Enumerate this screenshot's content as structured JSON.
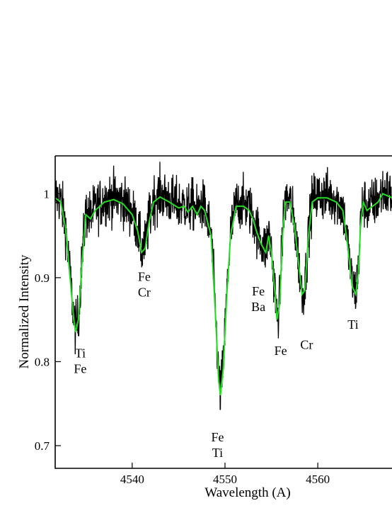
{
  "chart_data": {
    "type": "line",
    "xlabel": "Wavelength (A)",
    "ylabel": "Normalized Intensity",
    "xlim": [
      4531.7,
      4568.0
    ],
    "ylim": [
      0.673,
      1.045
    ],
    "xticks": [
      {
        "value": 4540,
        "label": "4540"
      },
      {
        "value": 4550,
        "label": "4550"
      },
      {
        "value": 4560,
        "label": "4560"
      }
    ],
    "yticks": [
      {
        "value": 0.7,
        "label": "0.7"
      },
      {
        "value": 0.8,
        "label": "0.8"
      },
      {
        "value": 0.9,
        "label": "0.9"
      },
      {
        "value": 1.0,
        "label": "1"
      }
    ],
    "series": [
      {
        "role": "observed",
        "color": "#000000",
        "depth_scale": 1.0,
        "noise": 0.028,
        "continuum": 0.995
      },
      {
        "role": "synthetic",
        "color": "#22dd22",
        "continuum": 0.995,
        "x": [
          4531.7,
          4532.3,
          4532.8,
          4533.3,
          4533.7,
          4533.9,
          4534.2,
          4534.6,
          4535.0,
          4535.5,
          4536.0,
          4537.0,
          4538.0,
          4539.0,
          4540.0,
          4540.6,
          4541.0,
          4541.4,
          4541.8,
          4542.3,
          4543.0,
          4544.0,
          4545.0,
          4545.6,
          4546.0,
          4546.5,
          4547.0,
          4547.4,
          4547.8,
          4548.5,
          4549.0,
          4549.3,
          4549.5,
          4549.8,
          4550.2,
          4550.6,
          4551.2,
          4552.0,
          4552.6,
          4553.0,
          4553.4,
          4553.9,
          4554.4,
          4554.7,
          4555.0,
          4555.4,
          4555.6,
          4555.9,
          4556.2,
          4556.5,
          4557.0,
          4557.5,
          4558.0,
          4558.3,
          4558.6,
          4559.0,
          4559.4,
          4560.0,
          4561.0,
          4562.0,
          4562.7,
          4563.2,
          4563.7,
          4564.1,
          4564.4,
          4564.6,
          4564.9,
          4565.3,
          4565.9,
          4566.5,
          4567.0,
          4568.0
        ],
        "y": [
          0.995,
          0.99,
          0.96,
          0.9,
          0.85,
          0.835,
          0.85,
          0.92,
          0.975,
          0.97,
          0.98,
          0.99,
          0.993,
          0.988,
          0.975,
          0.955,
          0.93,
          0.935,
          0.965,
          0.99,
          0.996,
          0.99,
          0.983,
          0.985,
          0.978,
          0.985,
          0.975,
          0.985,
          0.98,
          0.95,
          0.85,
          0.78,
          0.76,
          0.79,
          0.88,
          0.95,
          0.985,
          0.985,
          0.98,
          0.97,
          0.955,
          0.94,
          0.93,
          0.95,
          0.93,
          0.88,
          0.85,
          0.87,
          0.95,
          0.99,
          0.99,
          0.96,
          0.91,
          0.88,
          0.885,
          0.95,
          0.99,
          0.995,
          0.995,
          0.99,
          0.98,
          0.94,
          0.89,
          0.88,
          0.91,
          0.96,
          0.99,
          0.98,
          0.985,
          0.99,
          1.0,
          0.995
        ]
      }
    ],
    "annotations": [
      {
        "lines": [
          "Ti",
          "Fe"
        ],
        "x": 4534.4,
        "y": 0.805
      },
      {
        "lines": [
          "Fe",
          "Cr"
        ],
        "x": 4541.3,
        "y": 0.896
      },
      {
        "lines": [
          "Fe",
          "Ti"
        ],
        "x": 4549.2,
        "y": 0.705
      },
      {
        "lines": [
          "Fe",
          "Ba"
        ],
        "x": 4553.6,
        "y": 0.879
      },
      {
        "lines": [
          "Fe"
        ],
        "x": 4556.0,
        "y": 0.808
      },
      {
        "lines": [
          "Cr"
        ],
        "x": 4558.8,
        "y": 0.815
      },
      {
        "lines": [
          "Ti"
        ],
        "x": 4563.8,
        "y": 0.839
      }
    ]
  }
}
